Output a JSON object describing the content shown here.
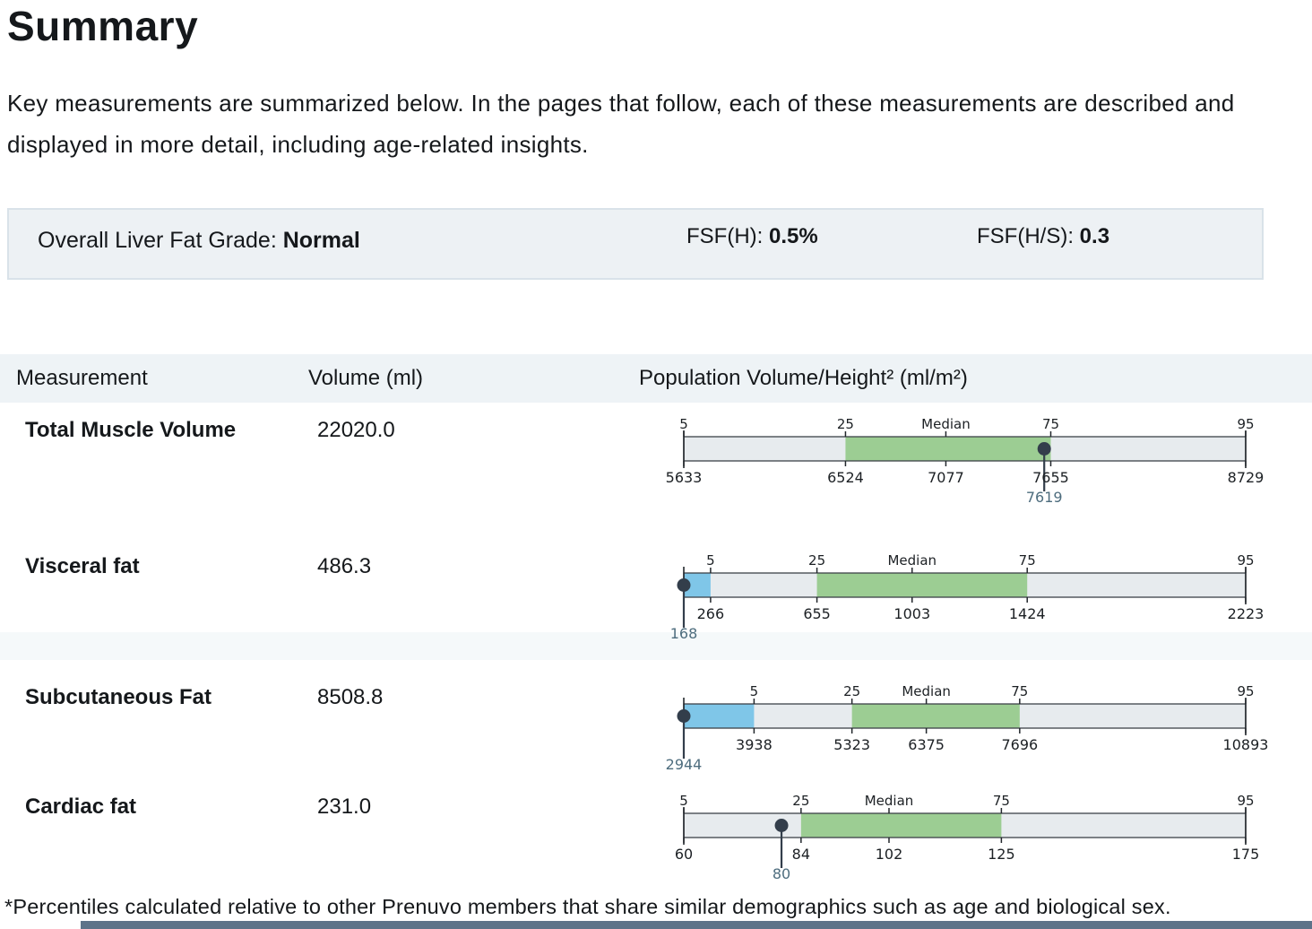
{
  "page": {
    "title": "Summary",
    "intro": "Key measurements are summarized below. In the pages that follow, each of these measurements are described and displayed in more detail, including age-related insights.",
    "footnote": "*Percentiles calculated relative to other Prenuvo members that share similar demographics such as age and biological sex."
  },
  "summary_box": {
    "liver_label": "Overall Liver Fat Grade:",
    "liver_value": "Normal",
    "fsf_h_label": "FSF(H):",
    "fsf_h_value": "0.5%",
    "fsf_hs_label": "FSF(H/S):",
    "fsf_hs_value": "0.3"
  },
  "table": {
    "headers": [
      "Measurement",
      "Volume (ml)",
      "Population Volume/Height² (ml/m²)"
    ]
  },
  "colors": {
    "green_band": "#9ccd93",
    "blue_band": "#7fc6e8",
    "gray_band": "#e7ebee",
    "bar_stroke": "#3c4249",
    "tick_stroke": "#22272c",
    "marker_dot": "#333e4b",
    "marker_label": "#4e6d7e",
    "axis_text": "#1c2024",
    "header_band": "#eef3f6",
    "infobox_bg": "#edf1f4",
    "bottom_bar": "#5d7389"
  },
  "chart_meta": {
    "type": "percentile-bar",
    "top_axis_labels": [
      "5",
      "25",
      "Median",
      "75",
      "95"
    ],
    "green_band_meaning": "25th to 75th percentile",
    "blue_band_meaning": "member value below 5th percentile",
    "scale": "linear"
  },
  "chart_data": [
    {
      "type": "percentile-bar",
      "measurement": "Total Muscle Volume",
      "volume_ml": "22020.0",
      "member_value": 7619,
      "axis_min": 5633,
      "axis_max": 8729,
      "percentile_values": [
        5633,
        6524,
        7077,
        7655,
        8729
      ],
      "percentile_labels": [
        "5",
        "25",
        "Median",
        "75",
        "95"
      ],
      "green_range": [
        6524,
        7655
      ],
      "blue_range": null
    },
    {
      "type": "percentile-bar",
      "measurement": "Visceral fat",
      "volume_ml": "486.3",
      "member_value": 168,
      "axis_min": 168,
      "axis_max": 2223,
      "percentile_values": [
        266,
        655,
        1003,
        1424,
        2223
      ],
      "percentile_labels": [
        "5",
        "25",
        "Median",
        "75",
        "95"
      ],
      "green_range": [
        655,
        1424
      ],
      "blue_range": [
        168,
        266
      ]
    },
    {
      "type": "percentile-bar",
      "measurement": "Subcutaneous Fat",
      "volume_ml": "8508.8",
      "member_value": 2944,
      "axis_min": 2944,
      "axis_max": 10893,
      "percentile_values": [
        3938,
        5323,
        6375,
        7696,
        10893
      ],
      "percentile_labels": [
        "5",
        "25",
        "Median",
        "75",
        "95"
      ],
      "green_range": [
        5323,
        7696
      ],
      "blue_range": [
        2944,
        3938
      ]
    },
    {
      "type": "percentile-bar",
      "measurement": "Cardiac fat",
      "volume_ml": "231.0",
      "member_value": 80,
      "axis_min": 60,
      "axis_max": 175,
      "percentile_values": [
        60,
        84,
        102,
        125,
        175
      ],
      "percentile_labels": [
        "5",
        "25",
        "Median",
        "75",
        "95"
      ],
      "green_range": [
        84,
        125
      ],
      "blue_range": null
    }
  ]
}
